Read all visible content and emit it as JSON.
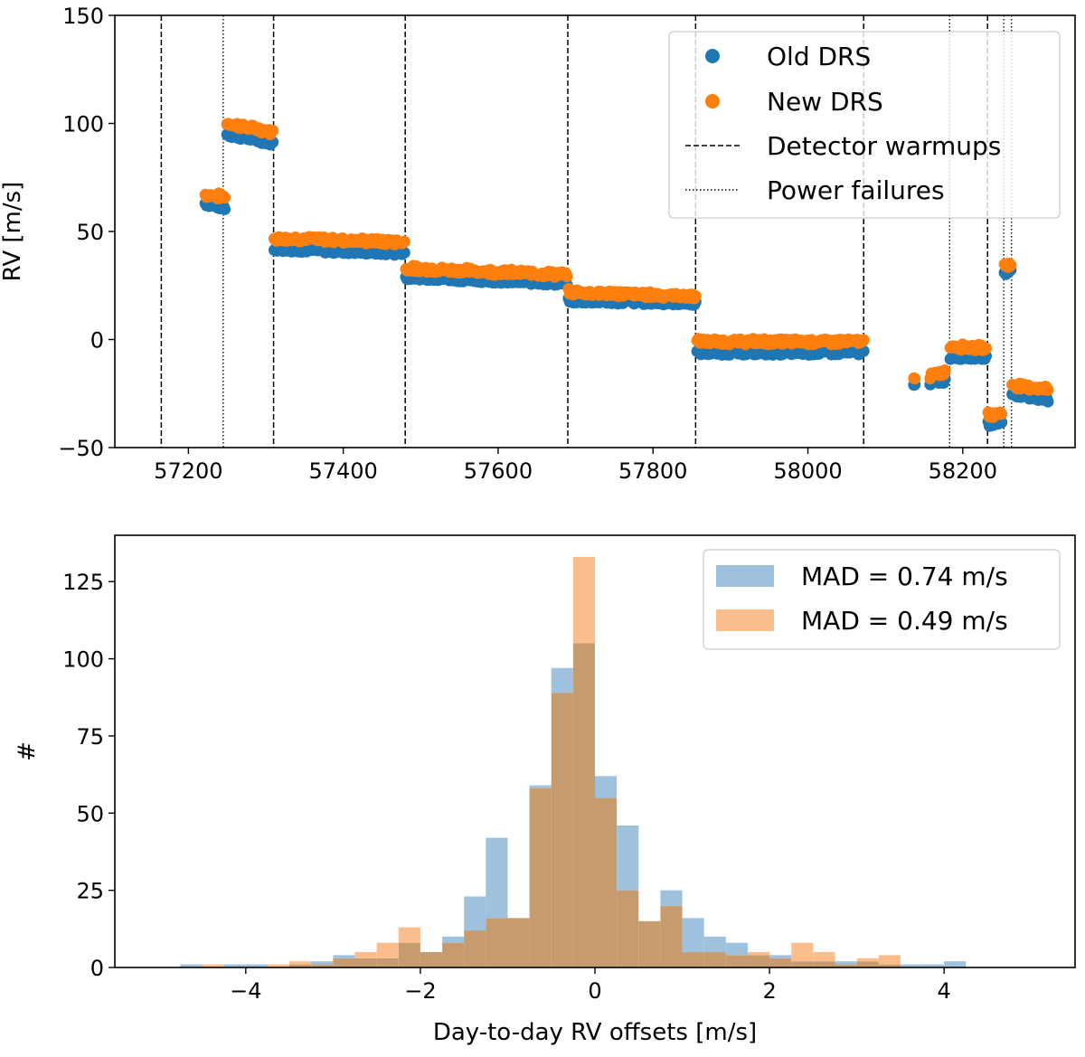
{
  "figure": {
    "panels": 2
  },
  "colors": {
    "blue": "#1f77b4",
    "orange": "#ff7f0e",
    "hist_blue": "#9ec1de",
    "hist_orange": "#fcbd8c",
    "hist_overlap": "#c69c6e"
  },
  "chart_data": [
    {
      "type": "scatter",
      "xlabel": "",
      "ylabel": "RV [m/s]",
      "xlim": [
        57105,
        58345
      ],
      "ylim": [
        -50,
        150
      ],
      "xticks": [
        57200,
        57400,
        57600,
        57800,
        58000,
        58200
      ],
      "yticks": [
        -50,
        0,
        50,
        100,
        150
      ],
      "xtick_labels": [
        "57200",
        "57400",
        "57600",
        "57800",
        "58000",
        "58200"
      ],
      "ytick_labels": [
        "−50",
        "0",
        "50",
        "100",
        "150"
      ],
      "legend": {
        "placement": "top-right",
        "entries": [
          {
            "label": "Old DRS",
            "kind": "marker",
            "color": "#1f77b4"
          },
          {
            "label": "New DRS",
            "kind": "marker",
            "color": "#ff7f0e"
          },
          {
            "label": "Detector warmups",
            "kind": "dashed"
          },
          {
            "label": "Power failures",
            "kind": "dotted"
          }
        ]
      },
      "detector_warmups": [
        57165,
        57310,
        57480,
        57690,
        57855,
        58072,
        58232
      ],
      "power_failures": [
        57245,
        58183,
        58253,
        58263
      ],
      "segments": [
        {
          "x": [
            57222,
            57247
          ],
          "old": [
            63,
            61
          ],
          "new": [
            67,
            66
          ]
        },
        {
          "x": [
            57250,
            57309
          ],
          "old": [
            95,
            91
          ],
          "new": [
            100,
            96
          ]
        },
        {
          "x": [
            57311,
            57479
          ],
          "old": [
            42,
            40
          ],
          "new": [
            47,
            45
          ]
        },
        {
          "x": [
            57481,
            57689
          ],
          "old": [
            29,
            26
          ],
          "new": [
            33,
            30
          ]
        },
        {
          "x": [
            57691,
            57855
          ],
          "old": [
            18,
            17
          ],
          "new": [
            22,
            20
          ]
        },
        {
          "x": [
            57857,
            58072
          ],
          "old": [
            -6,
            -6
          ],
          "new": [
            -1,
            -1
          ]
        },
        {
          "x": [
            58137,
            58138
          ],
          "old": [
            -20,
            -20
          ],
          "new": [
            -17,
            -17
          ]
        },
        {
          "x": [
            58158,
            58177
          ],
          "old": [
            -20,
            -19
          ],
          "new": [
            -17,
            -15
          ]
        },
        {
          "x": [
            58184,
            58230
          ],
          "old": [
            -8,
            -8
          ],
          "new": [
            -3,
            -4
          ]
        },
        {
          "x": [
            58233,
            58250
          ],
          "old": [
            -39,
            -38
          ],
          "new": [
            -35,
            -34
          ]
        },
        {
          "x": [
            58254,
            58262
          ],
          "old": [
            31,
            32
          ],
          "new": [
            35,
            34
          ]
        },
        {
          "x": [
            58264,
            58310
          ],
          "old": [
            -25,
            -28
          ],
          "new": [
            -21,
            -23
          ]
        }
      ]
    },
    {
      "type": "bar",
      "subtype": "histogram",
      "xlabel": "Day-to-day RV offsets [m/s]",
      "ylabel": "#",
      "xlim": [
        -5.5,
        5.5
      ],
      "ylim": [
        0,
        140
      ],
      "xticks": [
        -4,
        -2,
        0,
        2,
        4
      ],
      "yticks": [
        0,
        25,
        50,
        75,
        100,
        125
      ],
      "xtick_labels": [
        "−4",
        "−2",
        "0",
        "2",
        "4"
      ],
      "ytick_labels": [
        "0",
        "25",
        "50",
        "75",
        "100",
        "125"
      ],
      "bin_start": -4.75,
      "bin_width": 0.25,
      "legend": {
        "placement": "top-right",
        "entries": [
          {
            "label": "MAD = 0.74 m/s",
            "color": "#9ec1de"
          },
          {
            "label": "MAD = 0.49 m/s",
            "color": "#fcbd8c"
          }
        ]
      },
      "series": [
        {
          "name": "MAD = 0.74 m/s",
          "values": [
            1,
            0,
            1,
            1,
            0,
            1,
            2,
            4,
            3,
            3,
            8,
            5,
            10,
            23,
            42,
            16,
            59,
            97,
            105,
            62,
            46,
            15,
            25,
            16,
            10,
            8,
            4,
            4,
            2,
            2,
            2,
            2,
            1,
            1,
            1,
            2,
            0,
            0,
            0,
            0,
            0
          ]
        },
        {
          "name": "MAD = 0.49 m/s",
          "values": [
            0,
            1,
            0,
            0,
            1,
            2,
            1,
            3,
            5,
            8,
            13,
            5,
            8,
            12,
            16,
            16,
            58,
            89,
            133,
            55,
            25,
            15,
            20,
            5,
            5,
            4,
            5,
            3,
            8,
            5,
            1,
            3,
            4,
            0,
            0,
            0,
            0,
            0,
            0,
            0,
            0
          ]
        }
      ]
    }
  ]
}
